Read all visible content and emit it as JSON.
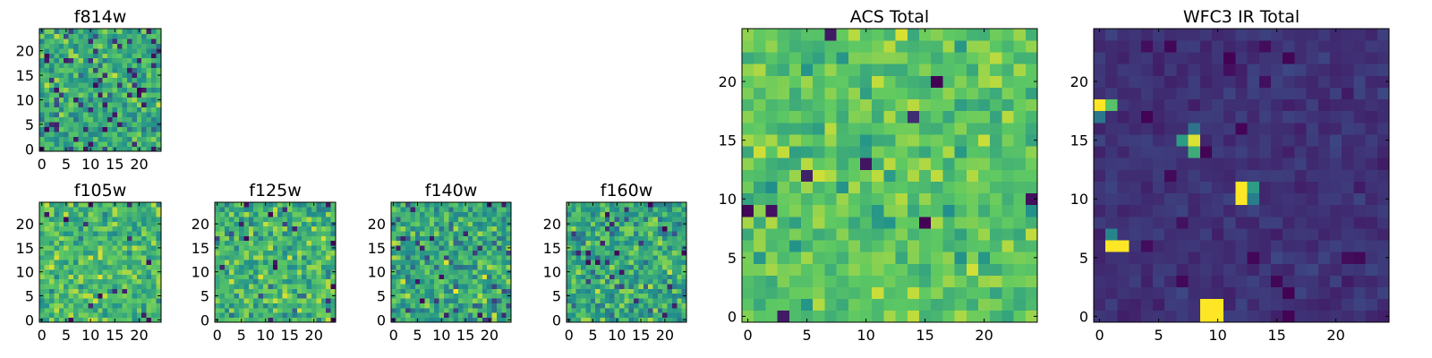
{
  "chart_data": [
    {
      "id": "f814w",
      "type": "heatmap",
      "title": "f814w",
      "colormap": "viridis",
      "cmap_stops": [
        "#440154",
        "#3b528b",
        "#21918c",
        "#5ec962",
        "#fde725"
      ],
      "grid": [
        25,
        25
      ],
      "xlim": [
        0,
        24
      ],
      "ylim": [
        0,
        24
      ],
      "xticks": [
        0,
        5,
        10,
        15,
        20
      ],
      "yticks": [
        0,
        5,
        10,
        15,
        20
      ],
      "seed": 11,
      "mean": 0.62,
      "spread": 0.2,
      "dark_cells": 60,
      "dark_range": [
        0.0,
        0.25
      ],
      "hot": []
    },
    {
      "id": "f105w",
      "type": "heatmap",
      "title": "f105w",
      "colormap": "viridis",
      "grid": [
        25,
        25
      ],
      "xlim": [
        0,
        24
      ],
      "ylim": [
        0,
        24
      ],
      "xticks": [
        0,
        5,
        10,
        15,
        20
      ],
      "yticks": [
        0,
        5,
        10,
        15,
        20
      ],
      "seed": 23,
      "mean": 0.68,
      "spread": 0.2,
      "dark_cells": 14,
      "dark_range": [
        0.0,
        0.2
      ],
      "hot": []
    },
    {
      "id": "f125w",
      "type": "heatmap",
      "title": "f125w",
      "colormap": "viridis",
      "grid": [
        25,
        25
      ],
      "xlim": [
        0,
        24
      ],
      "ylim": [
        0,
        24
      ],
      "xticks": [
        0,
        5,
        10,
        15,
        20
      ],
      "yticks": [
        0,
        5,
        10,
        15,
        20
      ],
      "seed": 37,
      "mean": 0.66,
      "spread": 0.22,
      "dark_cells": 20,
      "dark_range": [
        0.0,
        0.25
      ],
      "hot": []
    },
    {
      "id": "f140w",
      "type": "heatmap",
      "title": "f140w",
      "colormap": "viridis",
      "grid": [
        25,
        25
      ],
      "xlim": [
        0,
        24
      ],
      "ylim": [
        0,
        24
      ],
      "xticks": [
        0,
        5,
        10,
        15,
        20
      ],
      "yticks": [
        0,
        5,
        10,
        15,
        20
      ],
      "seed": 41,
      "mean": 0.6,
      "spread": 0.24,
      "dark_cells": 30,
      "dark_range": [
        0.0,
        0.25
      ],
      "hot": [
        {
          "x": 13,
          "y": 6,
          "v": 1.0
        }
      ]
    },
    {
      "id": "f160w",
      "type": "heatmap",
      "title": "f160w",
      "colormap": "viridis",
      "grid": [
        25,
        25
      ],
      "xlim": [
        0,
        24
      ],
      "ylim": [
        0,
        24
      ],
      "xticks": [
        0,
        5,
        10,
        15,
        20
      ],
      "yticks": [
        0,
        5,
        10,
        15,
        20
      ],
      "seed": 53,
      "mean": 0.6,
      "spread": 0.22,
      "dark_cells": 25,
      "dark_range": [
        0.0,
        0.25
      ],
      "hot": []
    },
    {
      "id": "acs_total",
      "type": "heatmap",
      "title": "ACS Total",
      "colormap": "viridis",
      "grid": [
        25,
        25
      ],
      "xlim": [
        0,
        24
      ],
      "ylim": [
        0,
        24
      ],
      "xticks": [
        0,
        5,
        10,
        15,
        20
      ],
      "yticks": [
        0,
        5,
        10,
        15,
        20
      ],
      "seed": 67,
      "mean": 0.72,
      "spread": 0.16,
      "dark_cells": 10,
      "dark_range": [
        0.0,
        0.15
      ],
      "hot": []
    },
    {
      "id": "wfc3_ir_total",
      "type": "heatmap",
      "title": "WFC3 IR Total",
      "colormap": "viridis",
      "grid": [
        25,
        25
      ],
      "xlim": [
        0,
        24
      ],
      "ylim": [
        0,
        24
      ],
      "xticks": [
        0,
        5,
        10,
        15,
        20
      ],
      "yticks": [
        0,
        5,
        10,
        15,
        20
      ],
      "seed": 79,
      "mean": 0.15,
      "spread": 0.05,
      "dark_cells": 20,
      "dark_range": [
        0.0,
        0.05
      ],
      "hot": [
        {
          "x": 0,
          "y": 18,
          "v": 1.0
        },
        {
          "x": 1,
          "y": 18,
          "v": 0.72
        },
        {
          "x": 0,
          "y": 17,
          "v": 0.4
        },
        {
          "x": 8,
          "y": 15,
          "v": 0.95
        },
        {
          "x": 7,
          "y": 15,
          "v": 0.55
        },
        {
          "x": 8,
          "y": 14,
          "v": 0.62
        },
        {
          "x": 8,
          "y": 16,
          "v": 0.38
        },
        {
          "x": 12,
          "y": 11,
          "v": 1.0
        },
        {
          "x": 12,
          "y": 10,
          "v": 1.0
        },
        {
          "x": 13,
          "y": 11,
          "v": 0.55
        },
        {
          "x": 13,
          "y": 10,
          "v": 0.42
        },
        {
          "x": 1,
          "y": 6,
          "v": 1.0
        },
        {
          "x": 2,
          "y": 6,
          "v": 1.0
        },
        {
          "x": 1,
          "y": 7,
          "v": 0.45
        },
        {
          "x": 9,
          "y": 0,
          "v": 1.0
        },
        {
          "x": 10,
          "y": 0,
          "v": 1.0
        },
        {
          "x": 9,
          "y": 1,
          "v": 1.0
        },
        {
          "x": 10,
          "y": 1,
          "v": 1.0
        }
      ]
    }
  ]
}
